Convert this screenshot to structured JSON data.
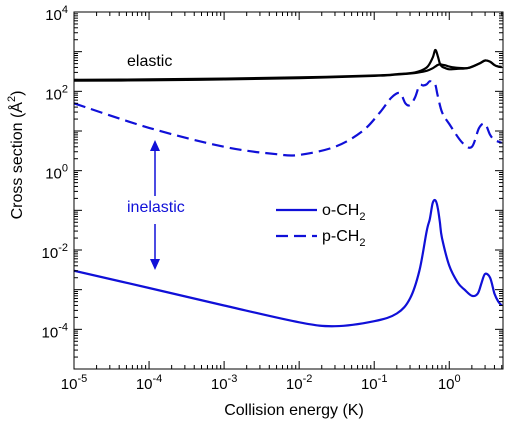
{
  "chart_data": {
    "type": "line",
    "title": "",
    "xlabel": "Collision energy (K)",
    "ylabel_base": "Cross section (Å",
    "ylabel_sup": "2",
    "ylabel_close": ")",
    "xscale": "log",
    "yscale": "log",
    "xlim": [
      1e-05,
      5.2
    ],
    "ylim": [
      1e-05,
      10000
    ],
    "x_ticks": [
      {
        "base": "10",
        "exp": "-5",
        "value": 1e-05
      },
      {
        "base": "10",
        "exp": "-4",
        "value": 0.0001
      },
      {
        "base": "10",
        "exp": "-3",
        "value": 0.001
      },
      {
        "base": "10",
        "exp": "-2",
        "value": 0.01
      },
      {
        "base": "10",
        "exp": "-1",
        "value": 0.1
      },
      {
        "base": "10",
        "exp": "0",
        "value": 1
      }
    ],
    "y_ticks": [
      {
        "base": "10",
        "exp": "-4",
        "value": 0.0001
      },
      {
        "base": "10",
        "exp": "-2",
        "value": 0.01
      },
      {
        "base": "10",
        "exp": "0",
        "value": 1
      },
      {
        "base": "10",
        "exp": "2",
        "value": 100
      },
      {
        "base": "10",
        "exp": "4",
        "value": 10000
      }
    ],
    "grid": false,
    "legend_position": "middle-right",
    "annotations": [
      {
        "text": "elastic",
        "color": "#000000"
      },
      {
        "text": "inelastic",
        "color": "#1010d8",
        "arrow": "double-vertical"
      }
    ],
    "series": [
      {
        "name": "o-CH",
        "name_sub": "2",
        "group": "inelastic",
        "color": "#1010d8",
        "dash": "solid",
        "x": [
          1e-05,
          0.0001,
          0.001,
          0.01,
          0.03,
          0.1,
          0.2,
          0.3,
          0.4,
          0.5,
          0.55,
          0.6,
          0.65,
          0.7,
          0.75,
          0.8,
          1.0,
          1.3,
          1.6,
          2.0,
          2.4,
          2.7,
          3.0,
          3.5,
          4.0,
          4.5,
          5.0
        ],
        "y": [
          0.003,
          0.0011,
          0.0004,
          0.00015,
          0.00012,
          0.00016,
          0.00025,
          0.0006,
          0.003,
          0.03,
          0.06,
          0.15,
          0.18,
          0.12,
          0.05,
          0.02,
          0.004,
          0.0015,
          0.001,
          0.0007,
          0.0008,
          0.0015,
          0.0025,
          0.002,
          0.0008,
          0.0005,
          0.0004
        ]
      },
      {
        "name": "p-CH",
        "name_sub": "2",
        "group": "inelastic",
        "color": "#1010d8",
        "dash": "dashed",
        "x": [
          1e-05,
          0.0001,
          0.001,
          0.005,
          0.01,
          0.03,
          0.07,
          0.12,
          0.17,
          0.22,
          0.26,
          0.3,
          0.35,
          0.4,
          0.45,
          0.5,
          0.55,
          0.6,
          0.65,
          0.7,
          0.8,
          1.0,
          1.5,
          2.0,
          2.5,
          3.0,
          3.5,
          4.0,
          5.0
        ],
        "y": [
          50,
          12,
          4,
          2.6,
          2.5,
          4,
          10,
          30,
          70,
          90,
          50,
          45,
          70,
          140,
          140,
          150,
          180,
          160,
          150,
          80,
          30,
          15,
          5,
          4,
          12,
          15,
          8,
          6,
          5
        ]
      },
      {
        "name": "o-CH2 elastic",
        "group": "elastic",
        "color": "#000000",
        "dash": "solid",
        "x": [
          1e-05,
          0.0001,
          0.001,
          0.01,
          0.1,
          0.2,
          0.35,
          0.5,
          0.6,
          0.65,
          0.7,
          0.75,
          0.8,
          0.9,
          1.0,
          1.3,
          1.8,
          2.5,
          3.0,
          3.5,
          4.0,
          4.5,
          5.0
        ],
        "y": [
          195,
          200,
          210,
          225,
          250,
          270,
          300,
          400,
          700,
          1100,
          800,
          500,
          420,
          380,
          360,
          370,
          390,
          500,
          600,
          560,
          460,
          420,
          410
        ]
      },
      {
        "name": "p-CH2 elastic",
        "group": "elastic",
        "color": "#000000",
        "dash": "solid",
        "x": [
          1e-05,
          0.0001,
          0.001,
          0.01,
          0.1,
          0.2,
          0.35,
          0.5,
          0.6,
          0.65,
          0.7,
          0.75,
          0.8,
          0.9,
          1.0,
          1.3,
          1.8,
          2.5,
          3.0,
          3.5,
          4.0,
          4.5,
          5.0
        ],
        "y": [
          185,
          190,
          200,
          215,
          245,
          265,
          290,
          330,
          380,
          420,
          460,
          480,
          470,
          450,
          420,
          390,
          390,
          500,
          600,
          560,
          460,
          420,
          410
        ]
      }
    ]
  }
}
